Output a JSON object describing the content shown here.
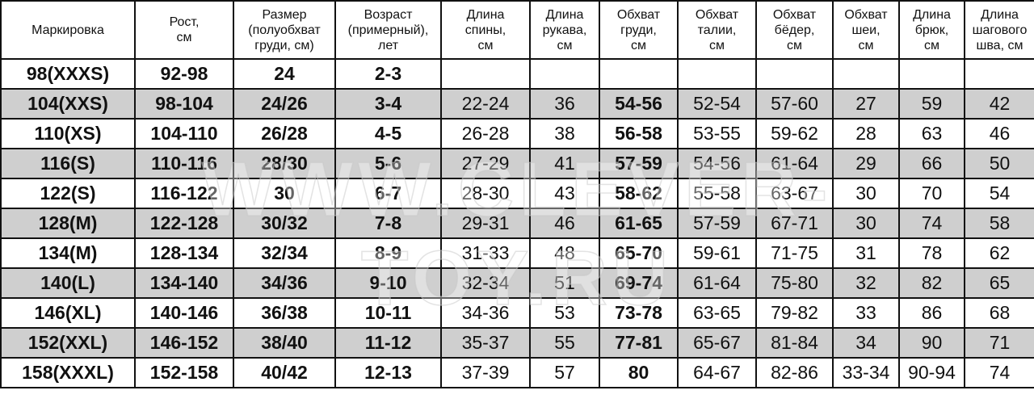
{
  "headers": [
    "Маркировка",
    "Рост,\nсм",
    "Размер\n(полуобхват\nгруди, см)",
    "Возраст\n(примерный),\nлет",
    "Длина\nспины,\nсм",
    "Длина\nрукава,\nсм",
    "Обхват\nгруди,\nсм",
    "Обхват\nталии,\nсм",
    "Обхват\nбёдер,\nсм",
    "Обхват\nшеи,\nсм",
    "Длина\nбрюк,\nсм",
    "Длина\nшагового\nшва, см"
  ],
  "rows": [
    [
      "98(XXXS)",
      "92-98",
      "24",
      "2-3",
      "",
      "",
      "",
      "",
      "",
      "",
      "",
      ""
    ],
    [
      "104(XXS)",
      "98-104",
      "24/26",
      "3-4",
      "22-24",
      "36",
      "54-56",
      "52-54",
      "57-60",
      "27",
      "59",
      "42"
    ],
    [
      "110(XS)",
      "104-110",
      "26/28",
      "4-5",
      "26-28",
      "38",
      "56-58",
      "53-55",
      "59-62",
      "28",
      "63",
      "46"
    ],
    [
      "116(S)",
      "110-116",
      "28/30",
      "5-6",
      "27-29",
      "41",
      "57-59",
      "54-56",
      "61-64",
      "29",
      "66",
      "50"
    ],
    [
      "122(S)",
      "116-122",
      "30",
      "6-7",
      "28-30",
      "43",
      "58-62",
      "55-58",
      "63-67",
      "30",
      "70",
      "54"
    ],
    [
      "128(M)",
      "122-128",
      "30/32",
      "7-8",
      "29-31",
      "46",
      "61-65",
      "57-59",
      "67-71",
      "30",
      "74",
      "58"
    ],
    [
      "134(M)",
      "128-134",
      "32/34",
      "8-9",
      "31-33",
      "48",
      "65-70",
      "59-61",
      "71-75",
      "31",
      "78",
      "62"
    ],
    [
      "140(L)",
      "134-140",
      "34/36",
      "9-10",
      "32-34",
      "51",
      "69-74",
      "61-64",
      "75-80",
      "32",
      "82",
      "65"
    ],
    [
      "146(XL)",
      "140-146",
      "36/38",
      "10-11",
      "34-36",
      "53",
      "73-78",
      "63-65",
      "79-82",
      "33",
      "86",
      "68"
    ],
    [
      "152(XXL)",
      "146-152",
      "38/40",
      "11-12",
      "35-37",
      "55",
      "77-81",
      "65-67",
      "81-84",
      "34",
      "90",
      "71"
    ],
    [
      "158(XXXL)",
      "152-158",
      "40/42",
      "12-13",
      "37-39",
      "57",
      "80",
      "64-67",
      "82-86",
      "33-34",
      "90-94",
      "74"
    ]
  ],
  "watermark": "WWW.CLEVER-TOY.RU",
  "colors": {
    "row_gray": "#cfcfcf",
    "border": "#111111"
  }
}
